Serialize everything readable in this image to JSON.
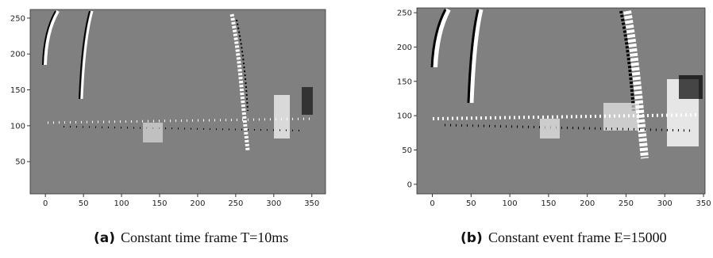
{
  "chart_data": [
    {
      "type": "image",
      "caption_label": "(a)",
      "caption": "Constant time frame T=10ms",
      "xlim": [
        -20,
        368
      ],
      "ylim": [
        5,
        262
      ],
      "xticks": [
        0,
        50,
        100,
        150,
        200,
        250,
        300,
        350
      ],
      "yticks": [
        50,
        100,
        150,
        200,
        250
      ]
    },
    {
      "type": "image",
      "caption_label": "(b)",
      "caption": "Constant event frame E=15000",
      "xlim": [
        -20,
        352
      ],
      "ylim": [
        -14,
        257
      ],
      "xticks": [
        0,
        50,
        100,
        150,
        200,
        250,
        300,
        350
      ],
      "yticks": [
        0,
        50,
        100,
        150,
        200,
        250
      ]
    }
  ]
}
